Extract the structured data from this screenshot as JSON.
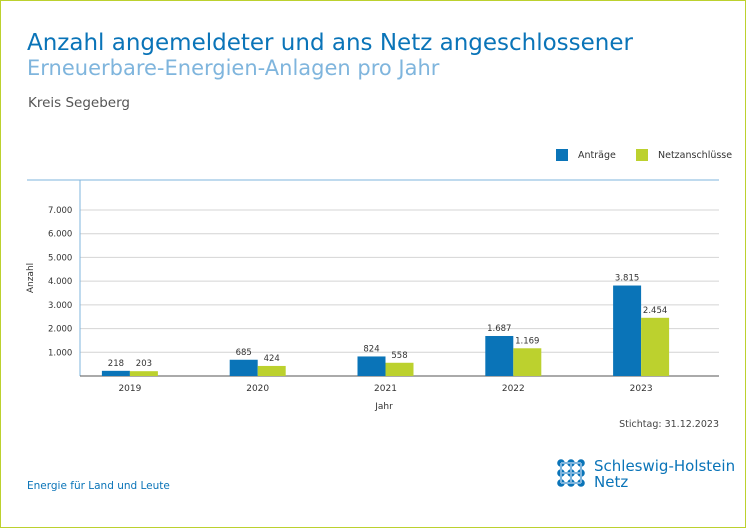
{
  "header": {
    "title_line1": "Anzahl angemeldeter und ans Netz angeschlossener",
    "title_line2": "Erneuerbare-Energien-Anlagen pro Jahr",
    "region": "Kreis Segeberg"
  },
  "footer": {
    "slogan": "Energie für Land und Leute",
    "stichtag": "Stichtag: 31.12.2023",
    "logo_line1": "Schleswig-Holstein",
    "logo_line2": "Netz"
  },
  "colors": {
    "antraege": "#0a74b8",
    "netzanschluesse": "#bcd12e",
    "frame": "#bcd12e",
    "title": "#0a74b8",
    "subtitle": "#7fb5dd"
  },
  "chart_data": {
    "type": "bar",
    "categories": [
      "2019",
      "2020",
      "2021",
      "2022",
      "2023"
    ],
    "series": [
      {
        "name": "Anträge",
        "values": [
          218,
          685,
          824,
          1687,
          3815
        ],
        "labels": [
          "218",
          "685",
          "824",
          "1.687",
          "3.815"
        ]
      },
      {
        "name": "Netzanschlüsse",
        "values": [
          203,
          424,
          558,
          1169,
          2454
        ],
        "labels": [
          "203",
          "424",
          "558",
          "1.169",
          "2.454"
        ]
      }
    ],
    "yticks": [
      1000,
      2000,
      3000,
      4000,
      5000,
      6000,
      7000
    ],
    "ytick_labels": [
      "1.000",
      "2.000",
      "3.000",
      "4.000",
      "5.000",
      "6.000",
      "7.000"
    ],
    "ylim": [
      0,
      7000
    ],
    "xlabel": "Jahr",
    "ylabel": "Anzahl",
    "grid": true,
    "legend_position": "top-right"
  }
}
